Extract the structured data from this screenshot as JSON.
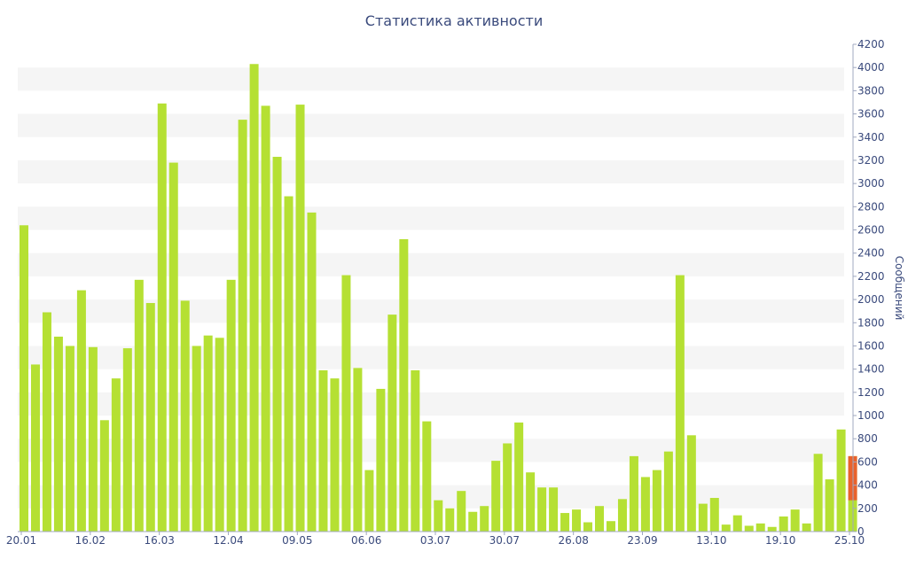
{
  "chart_data": {
    "type": "bar",
    "title": "Статистика активности",
    "xlabel": "",
    "ylabel": "Сообщений",
    "ylim": [
      0,
      4200
    ],
    "yticks": [
      0,
      200,
      400,
      600,
      800,
      1000,
      1200,
      1400,
      1600,
      1800,
      2000,
      2200,
      2400,
      2600,
      2800,
      3000,
      3200,
      3400,
      3600,
      3800,
      4000,
      4200
    ],
    "x_tick_labels": [
      "20.01",
      "16.02",
      "16.03",
      "12.04",
      "09.05",
      "06.06",
      "03.07",
      "30.07",
      "26.08",
      "23.09",
      "13.10",
      "19.10",
      "25.10"
    ],
    "grid": "horizontal alternating bands",
    "colors": {
      "bar": "#b5e033",
      "highlight": "#e8622d",
      "text": "#3a4a7c",
      "band": "#f5f5f5"
    },
    "values": [
      2640,
      1440,
      1890,
      1680,
      1600,
      2080,
      1590,
      960,
      1320,
      1580,
      2170,
      1970,
      3690,
      3180,
      1990,
      1600,
      1690,
      1670,
      2170,
      3550,
      4030,
      3670,
      3230,
      2890,
      3680,
      2750,
      1390,
      1320,
      2210,
      1410,
      530,
      1230,
      1870,
      2520,
      1390,
      950,
      270,
      200,
      350,
      170,
      220,
      610,
      760,
      940,
      510,
      380,
      380,
      160,
      190,
      80,
      220,
      90,
      280,
      650,
      470,
      530,
      690,
      2210,
      830,
      240,
      290,
      60,
      140,
      50,
      70,
      40,
      130,
      190,
      70,
      670,
      450,
      880,
      650
    ],
    "highlight": {
      "index": 72,
      "from": 270,
      "to": 650
    }
  }
}
